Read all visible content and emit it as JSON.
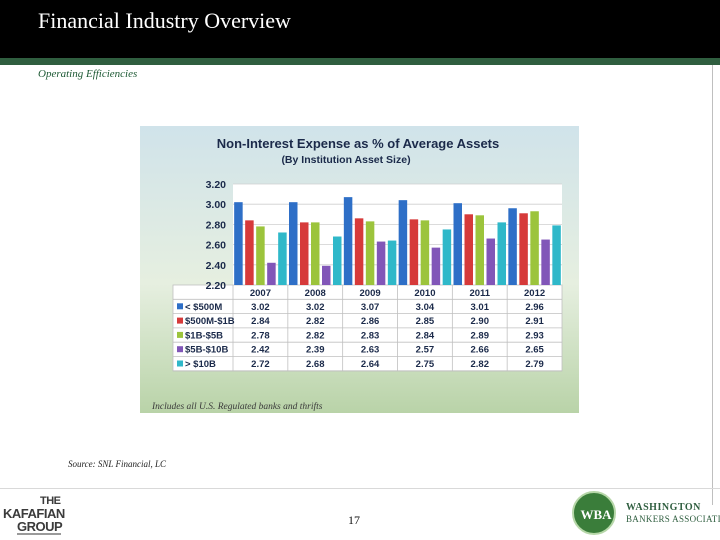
{
  "slide": {
    "title": "Financial Industry Overview",
    "subtitle": "Operating Efficiencies",
    "source": "Source: SNL Financial, LC",
    "page_number": "17"
  },
  "logos": {
    "left": {
      "line1": "THE",
      "line2": "KAFAFIAN",
      "line3": "GROUP"
    },
    "right": {
      "mark": "WBA",
      "name_line1": "WASHINGTON",
      "name_line2": "BANKERS ASSOCIATION"
    }
  },
  "chart_data": {
    "type": "bar",
    "title": "Non-Interest Expense as % of Average Assets",
    "subtitle": "(By Institution Asset Size)",
    "footnote": "Includes all U.S. Regulated banks and thrifts",
    "categories": [
      "2007",
      "2008",
      "2009",
      "2010",
      "2011",
      "2012"
    ],
    "ylim": [
      2.2,
      3.2
    ],
    "yticks": [
      "3.20",
      "3.00",
      "2.80",
      "2.60",
      "2.40",
      "2.20"
    ],
    "yticks_values": [
      3.2,
      3.0,
      2.8,
      2.6,
      2.4,
      2.2
    ],
    "grid": true,
    "series": [
      {
        "name": "< $500M",
        "color": "#2e6fc7",
        "values": [
          3.02,
          3.02,
          3.07,
          3.04,
          3.01,
          2.96
        ]
      },
      {
        "name": "$500M-$1B",
        "color": "#d63a3a",
        "values": [
          2.84,
          2.82,
          2.86,
          2.85,
          2.9,
          2.91
        ]
      },
      {
        "name": "$1B-$5B",
        "color": "#9cc43c",
        "values": [
          2.78,
          2.82,
          2.83,
          2.84,
          2.89,
          2.93
        ]
      },
      {
        "name": "$5B-$10B",
        "color": "#8156b8",
        "values": [
          2.42,
          2.39,
          2.63,
          2.57,
          2.66,
          2.65
        ]
      },
      {
        "name": "> $10B",
        "color": "#2fb8c9",
        "values": [
          2.72,
          2.68,
          2.64,
          2.75,
          2.82,
          2.79
        ]
      }
    ],
    "table_labels": [
      [
        "3.02",
        "3.02",
        "3.07",
        "3.04",
        "3.01",
        "2.96"
      ],
      [
        "2.84",
        "2.82",
        "2.86",
        "2.85",
        "2.90",
        "2.91"
      ],
      [
        "2.78",
        "2.82",
        "2.83",
        "2.84",
        "2.89",
        "2.93"
      ],
      [
        "2.42",
        "2.39",
        "2.63",
        "2.57",
        "2.66",
        "2.65"
      ],
      [
        "2.72",
        "2.68",
        "2.64",
        "2.75",
        "2.82",
        "2.79"
      ]
    ],
    "colors": {
      "background": "#dfe9d8",
      "plot_background": "#ffffff",
      "grid": "#c9c9c9"
    }
  }
}
